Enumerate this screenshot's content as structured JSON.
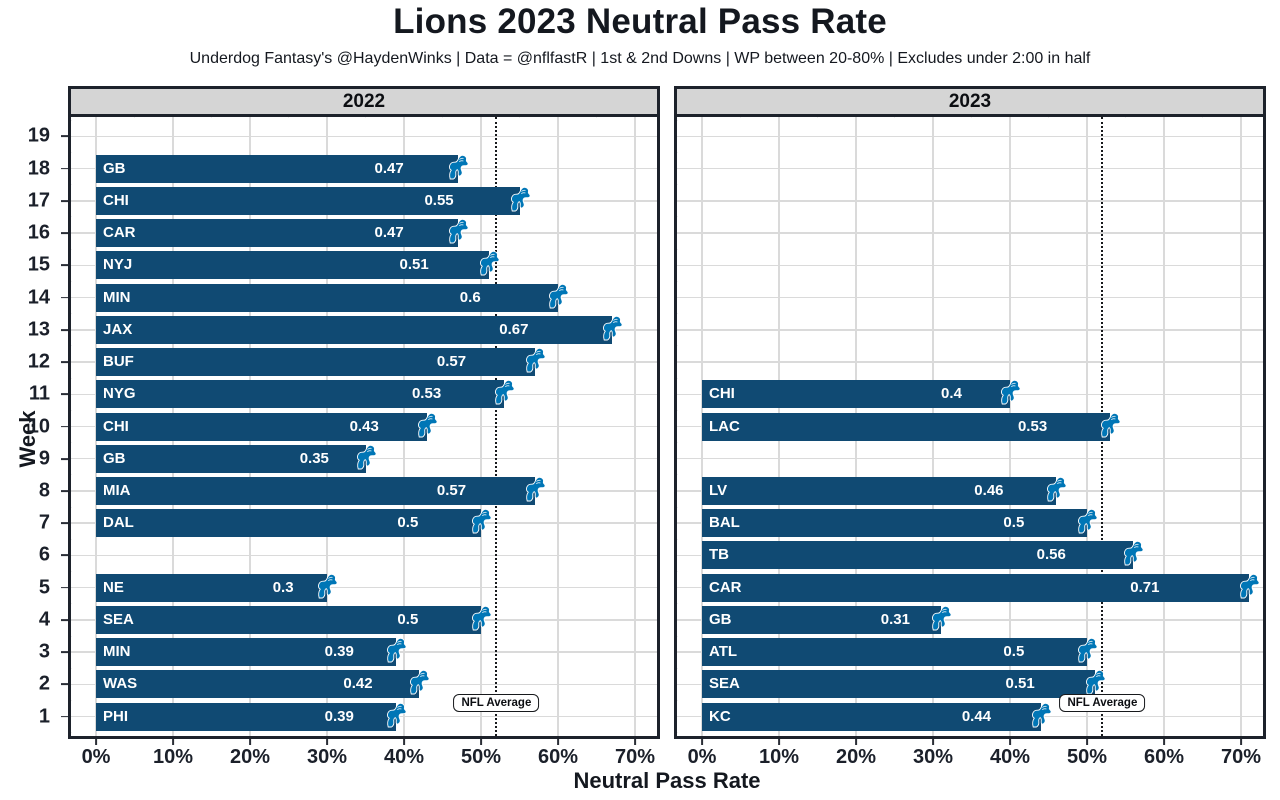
{
  "title": "Lions 2023 Neutral Pass Rate",
  "subtitle": "Underdog Fantasy's @HaydenWinks | Data = @nflfastR | 1st & 2nd Downs | WP between 20-80% | Excludes under 2:00 in half",
  "axis": {
    "x_label": "Neutral Pass Rate",
    "y_label": "Week",
    "x_ticks": [
      "0%",
      "10%",
      "20%",
      "30%",
      "40%",
      "50%",
      "60%",
      "70%"
    ],
    "y_ticks": [
      "19",
      "18",
      "17",
      "16",
      "15",
      "14",
      "13",
      "12",
      "11",
      "10",
      "9",
      "8",
      "7",
      "6",
      "5",
      "4",
      "3",
      "2",
      "1"
    ]
  },
  "colors": {
    "bar": "#104a73",
    "bar_text": "#ffffff",
    "logo_blue": "#0076b6",
    "strip_bg": "#d5d5d5",
    "panel_border": "#1d222b",
    "grid_major": "#dadada",
    "grid_minor": "#efefef",
    "text_dark": "#14181f"
  },
  "chart_data": {
    "type": "bar",
    "orientation": "horizontal",
    "title": "Lions 2023 Neutral Pass Rate",
    "xlabel": "Neutral Pass Rate",
    "ylabel": "Week",
    "x_axis": {
      "ticks_percent": [
        0,
        10,
        20,
        30,
        40,
        50,
        60,
        70
      ],
      "display_range": [
        -0.036,
        0.735
      ]
    },
    "y_axis": {
      "weeks": [
        1,
        19
      ]
    },
    "grid": true,
    "reference_line": {
      "value": 0.52,
      "label": "NFL Average",
      "style": "dotted"
    },
    "facets": [
      {
        "label": "2022",
        "bars": [
          {
            "week": 1,
            "opponent": "PHI",
            "value": 0.39,
            "label": "0.39"
          },
          {
            "week": 2,
            "opponent": "WAS",
            "value": 0.42,
            "label": "0.42"
          },
          {
            "week": 3,
            "opponent": "MIN",
            "value": 0.39,
            "label": "0.39"
          },
          {
            "week": 4,
            "opponent": "SEA",
            "value": 0.5,
            "label": "0.5"
          },
          {
            "week": 5,
            "opponent": "NE",
            "value": 0.3,
            "label": "0.3"
          },
          {
            "week": 7,
            "opponent": "DAL",
            "value": 0.5,
            "label": "0.5"
          },
          {
            "week": 8,
            "opponent": "MIA",
            "value": 0.57,
            "label": "0.57"
          },
          {
            "week": 9,
            "opponent": "GB",
            "value": 0.35,
            "label": "0.35"
          },
          {
            "week": 10,
            "opponent": "CHI",
            "value": 0.43,
            "label": "0.43"
          },
          {
            "week": 11,
            "opponent": "NYG",
            "value": 0.53,
            "label": "0.53"
          },
          {
            "week": 12,
            "opponent": "BUF",
            "value": 0.57,
            "label": "0.57"
          },
          {
            "week": 13,
            "opponent": "JAX",
            "value": 0.67,
            "label": "0.67"
          },
          {
            "week": 14,
            "opponent": "MIN",
            "value": 0.6,
            "label": "0.6"
          },
          {
            "week": 15,
            "opponent": "NYJ",
            "value": 0.51,
            "label": "0.51"
          },
          {
            "week": 16,
            "opponent": "CAR",
            "value": 0.47,
            "label": "0.47"
          },
          {
            "week": 17,
            "opponent": "CHI",
            "value": 0.55,
            "label": "0.55"
          },
          {
            "week": 18,
            "opponent": "GB",
            "value": 0.47,
            "label": "0.47"
          }
        ]
      },
      {
        "label": "2023",
        "bars": [
          {
            "week": 1,
            "opponent": "KC",
            "value": 0.44,
            "label": "0.44"
          },
          {
            "week": 2,
            "opponent": "SEA",
            "value": 0.51,
            "label": "0.51"
          },
          {
            "week": 3,
            "opponent": "ATL",
            "value": 0.5,
            "label": "0.5"
          },
          {
            "week": 4,
            "opponent": "GB",
            "value": 0.31,
            "label": "0.31"
          },
          {
            "week": 5,
            "opponent": "CAR",
            "value": 0.71,
            "label": "0.71"
          },
          {
            "week": 6,
            "opponent": "TB",
            "value": 0.56,
            "label": "0.56"
          },
          {
            "week": 7,
            "opponent": "BAL",
            "value": 0.5,
            "label": "0.5"
          },
          {
            "week": 8,
            "opponent": "LV",
            "value": 0.46,
            "label": "0.46"
          },
          {
            "week": 10,
            "opponent": "LAC",
            "value": 0.53,
            "label": "0.53"
          },
          {
            "week": 11,
            "opponent": "CHI",
            "value": 0.4,
            "label": "0.4"
          }
        ]
      }
    ]
  }
}
